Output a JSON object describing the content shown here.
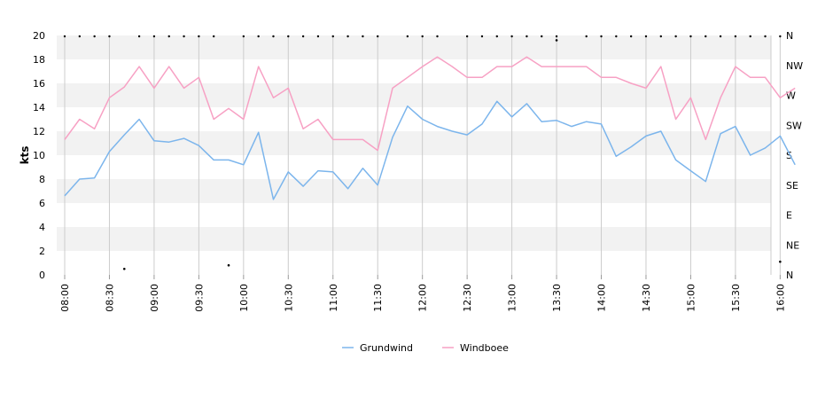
{
  "chart_data": {
    "type": "line",
    "ylabel": "kts",
    "ylim": [
      0,
      20
    ],
    "y_ticks": [
      "0",
      "2",
      "4",
      "6",
      "8",
      "10",
      "12",
      "14",
      "16",
      "18",
      "20"
    ],
    "right_ticks": [
      "N",
      "NE",
      "E",
      "SE",
      "S",
      "SW",
      "W",
      "NW",
      "N"
    ],
    "x_tick_labels": [
      "08:00",
      "08:30",
      "09:00",
      "09:30",
      "10:00",
      "10:30",
      "11:00",
      "11:30",
      "12:00",
      "12:30",
      "13:00",
      "13:30",
      "14:00",
      "14:30",
      "15:00",
      "15:30",
      "16:00"
    ],
    "x_start": "08:00",
    "x_step_minutes": 10,
    "legend_position": "bottom",
    "grid": true,
    "series": [
      {
        "name": "Grundwind",
        "color": "#7cb5ec",
        "values": [
          6.6,
          8.0,
          8.1,
          10.3,
          11.7,
          13.0,
          11.2,
          11.1,
          11.4,
          10.8,
          9.6,
          9.6,
          9.2,
          11.9,
          6.3,
          8.6,
          7.4,
          8.7,
          8.6,
          7.2,
          8.9,
          7.5,
          11.5,
          14.1,
          13.0,
          12.4,
          12.0,
          11.7,
          12.6,
          14.5,
          13.2,
          14.3,
          12.8,
          12.9,
          12.4,
          12.8,
          12.6,
          9.9,
          10.7,
          11.6,
          12.0,
          9.6,
          8.7,
          7.8,
          11.8,
          12.4,
          10.0,
          10.6,
          11.6,
          9.2
        ]
      },
      {
        "name": "Windboee",
        "color": "#f7a1c4",
        "values": [
          11.3,
          13.0,
          12.2,
          14.8,
          15.7,
          17.4,
          15.6,
          17.4,
          15.6,
          16.5,
          13.0,
          13.9,
          13.0,
          17.4,
          14.8,
          15.6,
          12.2,
          13.0,
          11.3,
          11.3,
          11.3,
          10.4,
          15.6,
          16.5,
          17.4,
          18.2,
          17.4,
          16.5,
          16.5,
          17.4,
          17.4,
          18.2,
          17.4,
          17.4,
          17.4,
          17.4,
          16.5,
          16.5,
          16.0,
          15.6,
          17.4,
          13.0,
          14.8,
          11.3,
          14.8,
          17.4,
          16.5,
          16.5,
          14.8,
          15.6
        ]
      }
    ],
    "direction": {
      "top_dot_indices": [
        0,
        1,
        2,
        3,
        5,
        6,
        7,
        8,
        9,
        10,
        12,
        13,
        14,
        15,
        16,
        17,
        18,
        19,
        20,
        21,
        23,
        24,
        25,
        27,
        28,
        29,
        30,
        31,
        32,
        33,
        35,
        36,
        37,
        38,
        39,
        40,
        41,
        42,
        43,
        44,
        45,
        46,
        47,
        48
      ],
      "other_dots": [
        {
          "index": 4,
          "value": 0.5
        },
        {
          "index": 11,
          "value": 0.8
        },
        {
          "index": 33,
          "value": 19.6
        },
        {
          "index": 48,
          "value": 1.1
        }
      ]
    }
  }
}
